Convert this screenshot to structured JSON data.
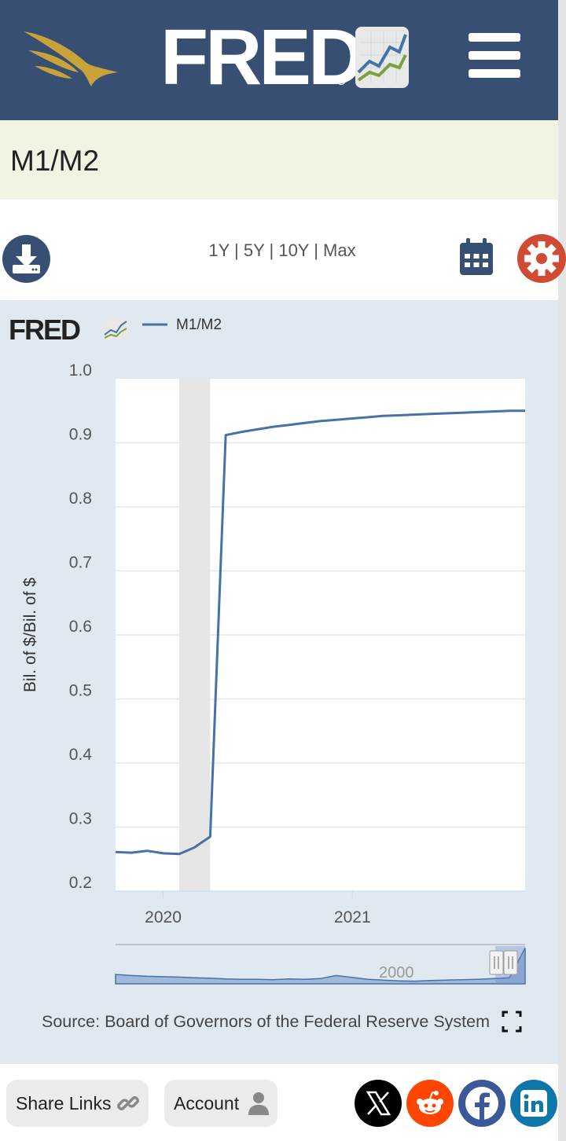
{
  "header": {
    "brand": "FRED",
    "brand_mark": "®",
    "logo_icon": "eagle-logo-icon",
    "menu_icon": "hamburger-menu-icon"
  },
  "series_title": "M1/M2",
  "controls": {
    "download_icon": "download-icon",
    "ranges": [
      "1Y",
      "5Y",
      "10Y",
      "Max"
    ],
    "calendar_icon": "calendar-icon",
    "settings_icon": "gear-icon"
  },
  "chart_data": {
    "type": "line",
    "brand": "FRED",
    "legend": "M1/M2",
    "legend_position": "top-left",
    "ylabel": "Bil. of $/Bil. of $",
    "ylim": [
      0.2,
      1.0
    ],
    "yticks": [
      "1.0",
      "0.9",
      "0.8",
      "0.7",
      "0.6",
      "0.5",
      "0.4",
      "0.3",
      "0.2"
    ],
    "xticks": [
      "2020",
      "2021"
    ],
    "xlim": [
      "2019-10-01",
      "2021-12-01"
    ],
    "recession_shading": [
      "2020-02-01",
      "2020-04-01"
    ],
    "grid": true,
    "series": [
      {
        "name": "M1/M2",
        "color": "#4572a7",
        "x": [
          "2019-10-01",
          "2019-11-01",
          "2019-12-01",
          "2020-01-01",
          "2020-02-01",
          "2020-03-01",
          "2020-04-01",
          "2020-05-01",
          "2020-06-01",
          "2020-07-01",
          "2020-08-01",
          "2020-09-01",
          "2020-10-01",
          "2020-11-01",
          "2020-12-01",
          "2021-01-01",
          "2021-02-01",
          "2021-03-01",
          "2021-04-01",
          "2021-05-01",
          "2021-06-01",
          "2021-07-01",
          "2021-08-01",
          "2021-09-01",
          "2021-10-01",
          "2021-11-01",
          "2021-12-01"
        ],
        "y": [
          0.261,
          0.26,
          0.263,
          0.259,
          0.258,
          0.268,
          0.285,
          0.912,
          0.917,
          0.921,
          0.925,
          0.928,
          0.931,
          0.934,
          0.936,
          0.938,
          0.94,
          0.942,
          0.943,
          0.944,
          0.945,
          0.946,
          0.947,
          0.948,
          0.949,
          0.95,
          0.95
        ]
      }
    ],
    "navigator": {
      "tick": "2000",
      "values": [
        0.25,
        0.22,
        0.2,
        0.19,
        0.18,
        0.16,
        0.15,
        0.13,
        0.12,
        0.12,
        0.11,
        0.13,
        0.12,
        0.14,
        0.22,
        0.17,
        0.12,
        0.1,
        0.08,
        0.07,
        0.09,
        0.1,
        0.11,
        0.12,
        0.14,
        0.16,
        0.95
      ]
    },
    "fullscreen_icon": "fullscreen-icon"
  },
  "source": "Source: Board of Governors of the Federal Reserve System",
  "footer": {
    "share_label": "Share Links",
    "share_icon": "link-icon",
    "account_label": "Account",
    "account_icon": "user-icon",
    "social": [
      {
        "name": "x-icon",
        "color": "#000000"
      },
      {
        "name": "reddit-icon",
        "color": "#ff4500"
      },
      {
        "name": "facebook-icon",
        "color": "#3b5998"
      },
      {
        "name": "linkedin-icon",
        "color": "#0e76a8"
      }
    ]
  }
}
